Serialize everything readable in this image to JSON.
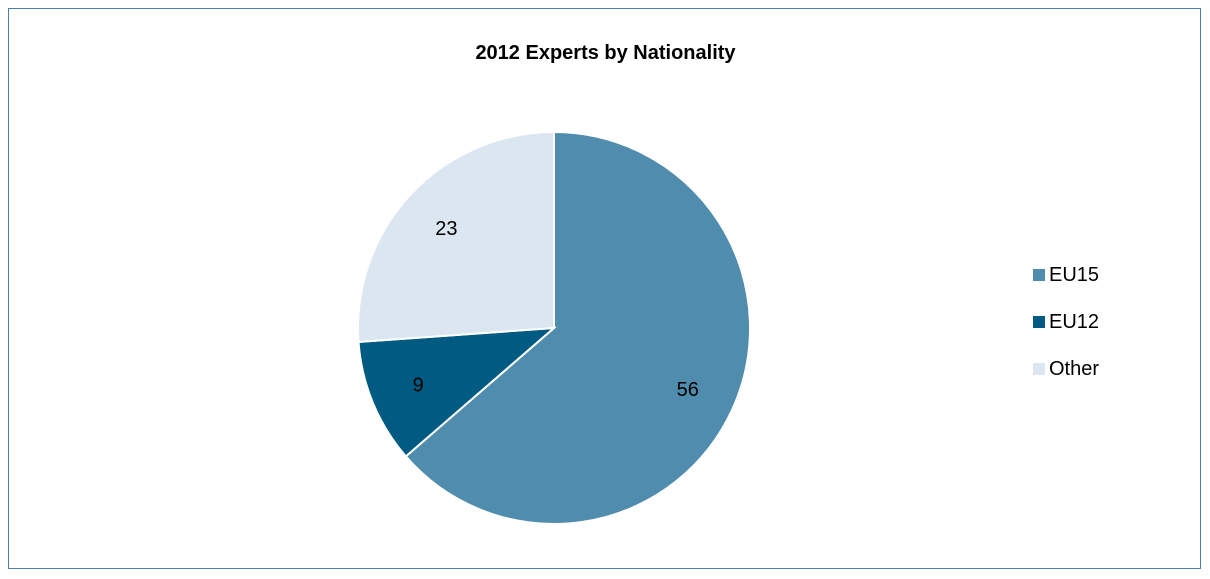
{
  "chart_data": {
    "type": "pie",
    "title": "2012 Experts by Nationality",
    "categories": [
      "EU15",
      "EU12",
      "Other"
    ],
    "values": [
      56,
      9,
      23
    ],
    "colors": [
      "#4f8cad",
      "#005a82",
      "#dce6f1"
    ],
    "legend_position": "right",
    "data_labels": [
      "56",
      "9",
      "23"
    ]
  }
}
